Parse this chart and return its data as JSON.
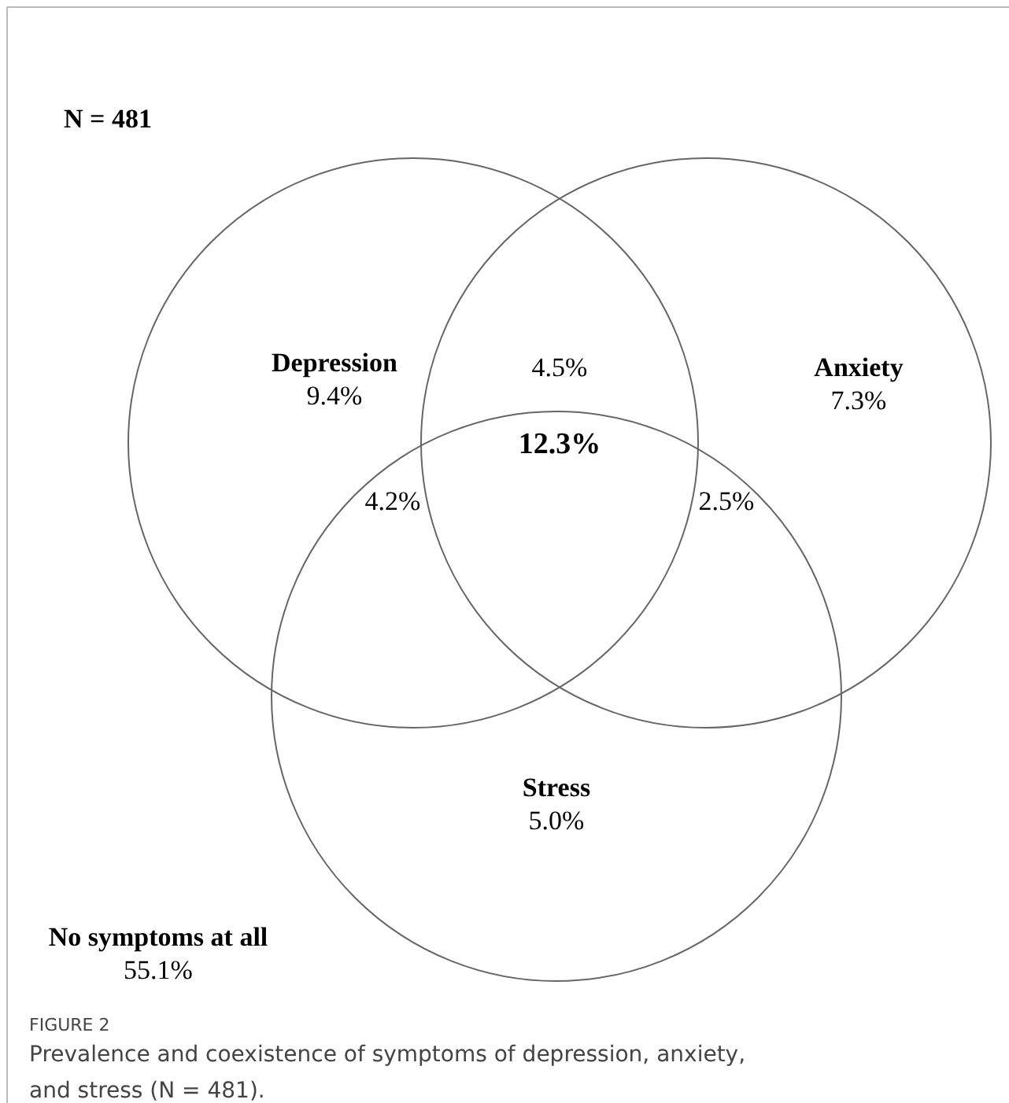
{
  "chart_data": {
    "type": "other",
    "title": "N = 481",
    "categories": [
      "Depression",
      "Anxiety",
      "Stress",
      "No symptoms at all"
    ],
    "values": [
      9.4,
      7.3,
      5.0,
      55.1
    ],
    "data_labels": true,
    "value_labels": [
      "9.4%",
      "7.3%",
      "5.0%",
      "55.1%"
    ],
    "annotations": [
      "4.5%",
      "4.2%",
      "2.5%",
      "12.3%",
      "FIGURE 2",
      "Prevalence and coexistence of symptoms of depression, anxiety,\nand stress (N = 481)."
    ]
  }
}
